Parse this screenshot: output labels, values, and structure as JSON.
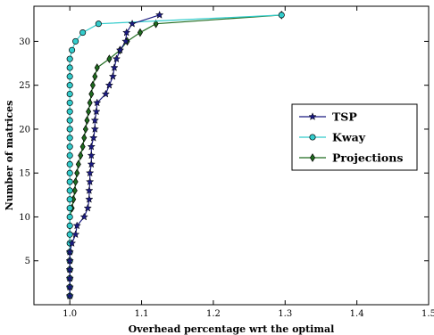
{
  "chart_data": {
    "type": "line",
    "title": "",
    "xlabel": "Overhead percentage wrt the optimal",
    "ylabel": "Number of matrices",
    "xlim": [
      0.95,
      1.5
    ],
    "ylim": [
      0,
      34
    ],
    "xticks": [
      1.0,
      1.1,
      1.2,
      1.3,
      1.4,
      1.5
    ],
    "xtick_labels": [
      "1.0",
      "1.1",
      "1.2",
      "1.3",
      "1.4",
      "1.5"
    ],
    "yticks": [
      5,
      10,
      15,
      20,
      25,
      30
    ],
    "ytick_labels": [
      "5",
      "10",
      "15",
      "20",
      "25",
      "30"
    ],
    "grid": false,
    "legend_position": "right",
    "series": [
      {
        "name": "TSP",
        "color": "#1a1a80",
        "marker": "star",
        "x": [
          1.0,
          1.0,
          1.0,
          1.0,
          1.0,
          1.0,
          1.003,
          1.008,
          1.01,
          1.02,
          1.025,
          1.027,
          1.027,
          1.028,
          1.028,
          1.03,
          1.03,
          1.03,
          1.033,
          1.035,
          1.035,
          1.037,
          1.038,
          1.05,
          1.055,
          1.06,
          1.062,
          1.065,
          1.07,
          1.078,
          1.079,
          1.087,
          1.125
        ],
        "y": [
          1,
          2,
          3,
          4,
          5,
          6,
          7,
          8,
          9,
          10,
          11,
          12,
          13,
          14,
          15,
          16,
          17,
          18,
          19,
          20,
          21,
          22,
          23,
          24,
          25,
          26,
          27,
          28,
          29,
          30,
          31,
          32,
          33
        ]
      },
      {
        "name": "Kway",
        "color": "#33cccc",
        "marker": "circle",
        "x": [
          1.0,
          1.0,
          1.0,
          1.0,
          1.0,
          1.0,
          1.0,
          1.0,
          1.0,
          1.0,
          1.0,
          1.0,
          1.0,
          1.0,
          1.0,
          1.0,
          1.0,
          1.0,
          1.0,
          1.0,
          1.0,
          1.0,
          1.0,
          1.0,
          1.0,
          1.0,
          1.0,
          1.0,
          1.003,
          1.008,
          1.018,
          1.04,
          1.295
        ],
        "y": [
          1,
          2,
          3,
          4,
          5,
          6,
          7,
          8,
          9,
          10,
          11,
          12,
          13,
          14,
          15,
          16,
          17,
          18,
          19,
          20,
          21,
          22,
          23,
          24,
          25,
          26,
          27,
          28,
          29,
          30,
          31,
          32,
          33
        ]
      },
      {
        "name": "Projections",
        "color": "#1f6b1f",
        "marker": "diamond",
        "x": [
          1.0,
          1.0,
          1.0,
          1.0,
          1.0,
          1.0,
          1.0,
          1.0,
          1.0,
          1.0,
          1.003,
          1.005,
          1.007,
          1.008,
          1.01,
          1.012,
          1.015,
          1.018,
          1.02,
          1.022,
          1.024,
          1.026,
          1.028,
          1.03,
          1.032,
          1.035,
          1.038,
          1.055,
          1.07,
          1.08,
          1.098,
          1.12,
          1.295
        ],
        "y": [
          1,
          2,
          3,
          4,
          5,
          6,
          7,
          8,
          9,
          10,
          11,
          12,
          13,
          14,
          15,
          16,
          17,
          18,
          19,
          20,
          21,
          22,
          23,
          24,
          25,
          26,
          27,
          28,
          29,
          30,
          31,
          32,
          33
        ]
      }
    ]
  }
}
